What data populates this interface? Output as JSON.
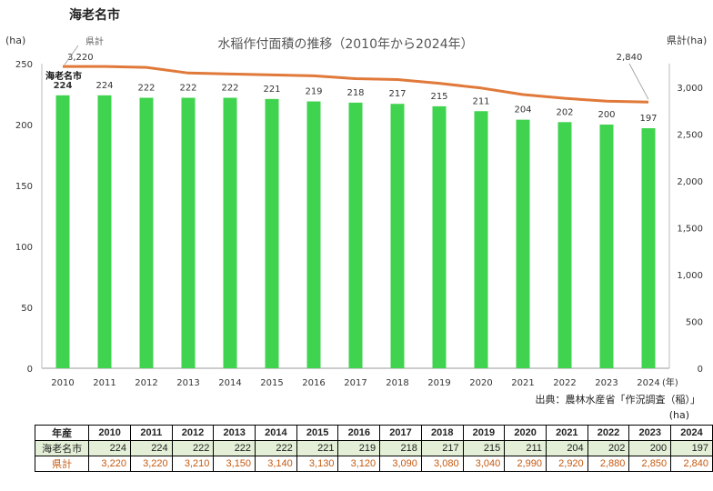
{
  "page_title": "海老名市",
  "chart_data": {
    "type": "bar+line",
    "title": "水稲作付面積の推移（2010年から2024年）",
    "categories": [
      "2010",
      "2011",
      "2012",
      "2013",
      "2014",
      "2015",
      "2016",
      "2017",
      "2018",
      "2019",
      "2020",
      "2021",
      "2022",
      "2023",
      "2024"
    ],
    "x_unit": "(年)",
    "series": [
      {
        "name": "海老名市",
        "type": "bar",
        "axis": "left",
        "color": "#3fd34f",
        "values": [
          224,
          224,
          222,
          222,
          222,
          221,
          219,
          218,
          217,
          215,
          211,
          204,
          202,
          200,
          197
        ]
      },
      {
        "name": "県計",
        "type": "line",
        "axis": "right",
        "color": "#e0793a",
        "values": [
          3220,
          3220,
          3210,
          3150,
          3140,
          3130,
          3120,
          3090,
          3080,
          3040,
          2990,
          2920,
          2880,
          2850,
          2840
        ]
      }
    ],
    "ylabel_left": "(ha)",
    "ylim_left": [
      0,
      250
    ],
    "yticks_left": [
      0,
      50,
      100,
      150,
      200,
      250
    ],
    "ylabel_right": "県計(ha)",
    "ylim_right": [
      0,
      3250
    ],
    "yticks_right": [
      "0",
      "500",
      "1,000",
      "1,500",
      "2,000",
      "2,500",
      "3,000"
    ],
    "callouts": {
      "line_start_label": "県計",
      "line_start_value": "3,220",
      "line_end_value": "2,840",
      "bar_start_label": "海老名市"
    },
    "source": "出典：農林水産省「作況調査（稲）」"
  },
  "table": {
    "unit": "(ha)",
    "header": "年産",
    "years": [
      "2010",
      "2011",
      "2012",
      "2013",
      "2014",
      "2015",
      "2016",
      "2017",
      "2018",
      "2019",
      "2020",
      "2021",
      "2022",
      "2023",
      "2024"
    ],
    "rows": [
      {
        "label": "海老名市",
        "values": [
          "224",
          "224",
          "222",
          "222",
          "222",
          "221",
          "219",
          "218",
          "217",
          "215",
          "211",
          "204",
          "202",
          "200",
          "197"
        ]
      },
      {
        "label": "県計",
        "values": [
          "3,220",
          "3,220",
          "3,210",
          "3,150",
          "3,140",
          "3,130",
          "3,120",
          "3,090",
          "3,080",
          "3,040",
          "2,990",
          "2,920",
          "2,880",
          "2,850",
          "2,840"
        ]
      }
    ]
  }
}
